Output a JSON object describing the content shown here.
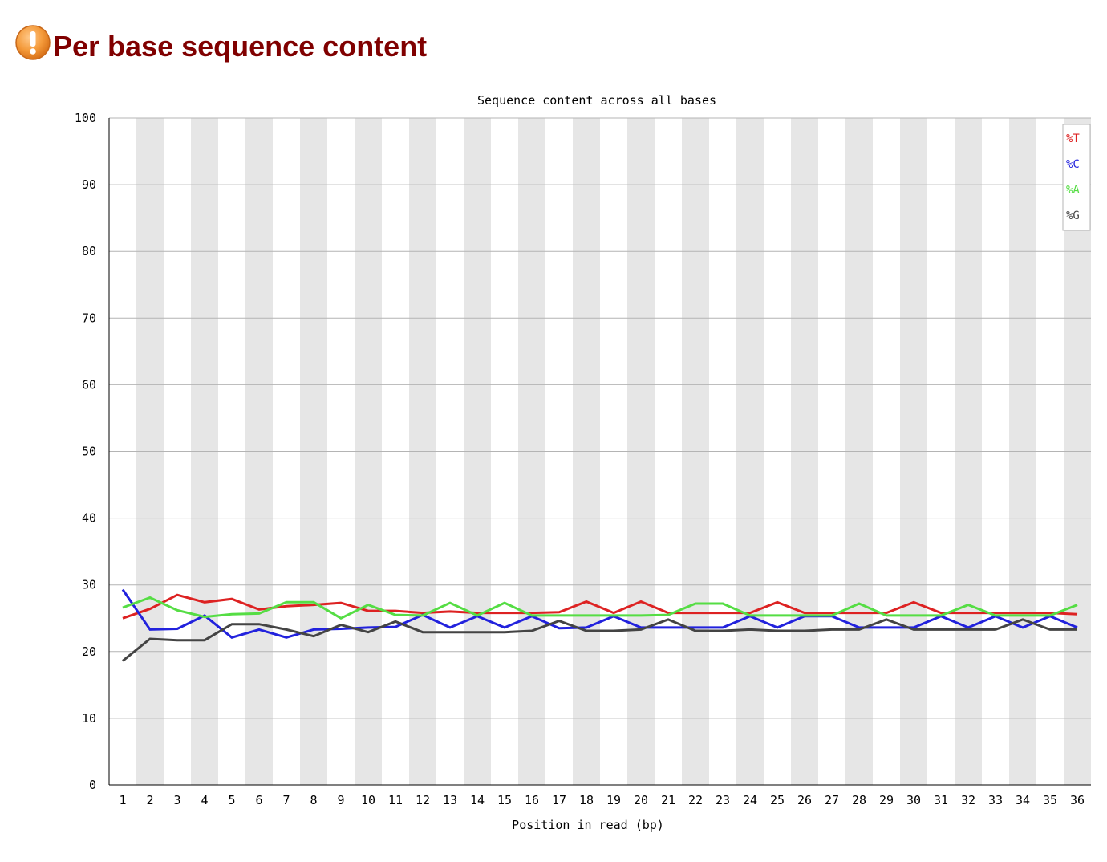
{
  "page": {
    "title": "Per base sequence content",
    "status_icon": "warning-icon"
  },
  "chart_data": {
    "type": "line",
    "title": "Sequence content across all bases",
    "xlabel": "Position in read (bp)",
    "ylabel": "",
    "ylim": [
      0,
      100
    ],
    "yticks": [
      0,
      10,
      20,
      30,
      40,
      50,
      60,
      70,
      80,
      90,
      100
    ],
    "grid": true,
    "legend_position": "top-right",
    "categories": [
      "1",
      "2",
      "3",
      "4",
      "5",
      "6",
      "7",
      "8",
      "9",
      "10",
      "11",
      "12",
      "13",
      "14",
      "15",
      "16",
      "17",
      "18",
      "19",
      "20",
      "21",
      "22",
      "23",
      "24",
      "25",
      "26",
      "27",
      "28",
      "29",
      "30",
      "31",
      "32",
      "33",
      "34",
      "35",
      "36"
    ],
    "series": [
      {
        "name": "%T",
        "color": "#dd2222",
        "values": [
          25.0,
          26.4,
          28.5,
          27.4,
          27.9,
          26.3,
          26.8,
          27.0,
          27.3,
          26.1,
          26.1,
          25.8,
          26.0,
          25.8,
          25.8,
          25.8,
          25.9,
          27.5,
          25.8,
          27.5,
          25.8,
          25.8,
          25.8,
          25.8,
          27.4,
          25.8,
          25.8,
          25.8,
          25.8,
          27.4,
          25.8,
          25.8,
          25.8,
          25.8,
          25.8,
          25.6
        ]
      },
      {
        "name": "%C",
        "color": "#2222dd",
        "values": [
          29.3,
          23.3,
          23.4,
          25.4,
          22.1,
          23.3,
          22.1,
          23.3,
          23.4,
          23.6,
          23.7,
          25.5,
          23.6,
          25.3,
          23.6,
          25.3,
          23.5,
          23.6,
          25.3,
          23.6,
          23.6,
          23.6,
          23.6,
          25.3,
          23.6,
          25.3,
          25.3,
          23.6,
          23.6,
          23.6,
          25.3,
          23.6,
          25.3,
          23.6,
          25.3,
          23.6
        ]
      },
      {
        "name": "%A",
        "color": "#55dd44",
        "values": [
          26.6,
          28.1,
          26.2,
          25.2,
          25.6,
          25.7,
          27.4,
          27.4,
          25.0,
          27.0,
          25.5,
          25.4,
          27.3,
          25.4,
          27.3,
          25.4,
          25.4,
          25.4,
          25.4,
          25.4,
          25.5,
          27.2,
          27.2,
          25.4,
          25.4,
          25.4,
          25.4,
          27.2,
          25.4,
          25.4,
          25.4,
          27.0,
          25.4,
          25.4,
          25.4,
          27.0
        ]
      },
      {
        "name": "%G",
        "color": "#444444",
        "values": [
          18.6,
          21.9,
          21.7,
          21.7,
          24.1,
          24.1,
          23.3,
          22.3,
          24.0,
          22.9,
          24.5,
          22.9,
          22.9,
          22.9,
          22.9,
          23.1,
          24.6,
          23.1,
          23.1,
          23.3,
          24.8,
          23.1,
          23.1,
          23.3,
          23.1,
          23.1,
          23.3,
          23.3,
          24.8,
          23.3,
          23.3,
          23.3,
          23.3,
          24.8,
          23.3,
          23.3
        ]
      }
    ]
  }
}
